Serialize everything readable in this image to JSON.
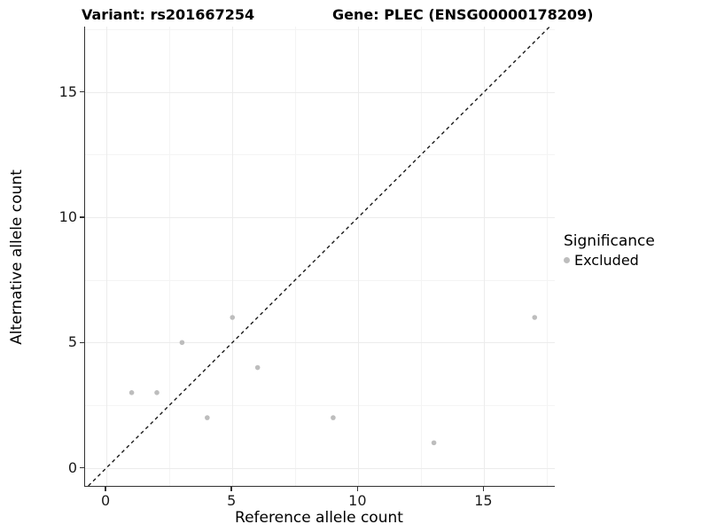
{
  "header": {
    "title_left": "Variant: rs201667254",
    "title_right": "Gene: PLEC (ENSG00000178209)"
  },
  "legend": {
    "title": "Significance",
    "items": [
      {
        "label": "Excluded",
        "color": "#bdbdbd"
      }
    ]
  },
  "axes": {
    "xlabel": "Reference allele count",
    "ylabel": "Alternative allele count"
  },
  "colors": {
    "point": "#bdbdbd",
    "grid_major": "#ececec",
    "grid_minor": "#f4f4f4",
    "axis_line": "#333333",
    "identity_line": "#1a1a1a"
  },
  "chart_data": {
    "type": "scatter",
    "title": "Variant: rs201667254 | Gene: PLEC (ENSG00000178209)",
    "xlabel": "Reference allele count",
    "ylabel": "Alternative allele count",
    "series": [
      {
        "name": "Excluded",
        "color": "#bdbdbd",
        "points": [
          [
            1,
            3
          ],
          [
            2,
            3
          ],
          [
            3,
            5
          ],
          [
            4,
            2
          ],
          [
            5,
            6
          ],
          [
            6,
            4
          ],
          [
            9,
            2
          ],
          [
            13,
            1
          ],
          [
            17,
            6
          ]
        ]
      }
    ],
    "identity_line": {
      "slope": 1,
      "intercept": 0,
      "style": "dashed",
      "color": "#1a1a1a"
    },
    "x_ticks": [
      0,
      5,
      10,
      15
    ],
    "y_ticks": [
      0,
      5,
      10,
      15
    ],
    "x_minor_ticks": [
      2.5,
      7.5,
      12.5,
      17.5
    ],
    "y_minor_ticks": [
      2.5,
      7.5,
      12.5,
      17.5
    ],
    "xlim": [
      -0.85,
      17.8
    ],
    "ylim": [
      -0.72,
      17.6
    ],
    "grid": true,
    "legend_position": "right",
    "point_radius_px": 2.8
  }
}
